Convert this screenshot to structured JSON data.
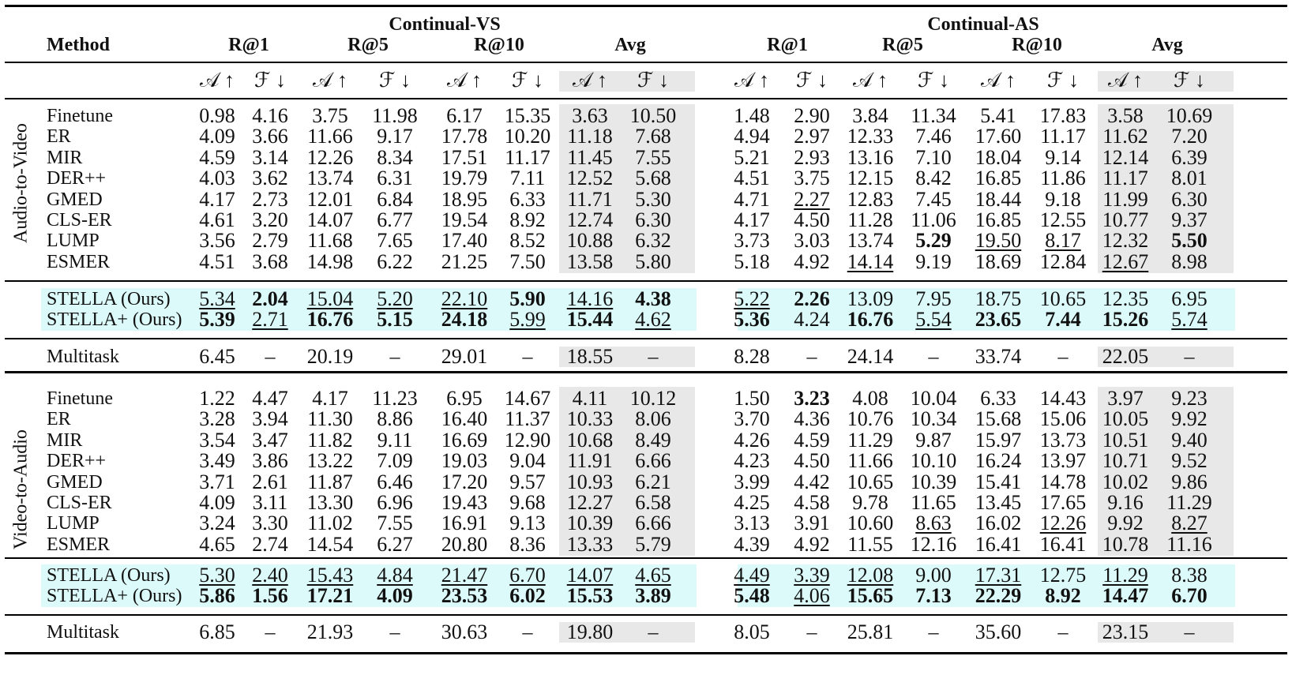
{
  "header": {
    "method_label": "Method",
    "groups": [
      "Continual-VS",
      "Continual-AS"
    ],
    "metrics": [
      "R@1",
      "R@5",
      "R@10",
      "Avg"
    ],
    "sub_a": "𝒜 ↑",
    "sub_f": "ℱ ↓"
  },
  "colors": {
    "avg_shade": "#e8e8e8",
    "ours_shade": "#dcfafa"
  },
  "sections": [
    {
      "name": "Audio-to-Video",
      "rows": [
        {
          "method": "Finetune",
          "values": [
            "0.98",
            "4.16",
            "3.75",
            "11.98",
            "6.17",
            "15.35",
            "3.63",
            "10.50",
            "1.48",
            "2.90",
            "3.84",
            "11.34",
            "5.41",
            "17.83",
            "3.58",
            "10.69"
          ],
          "bold": [],
          "underline": []
        },
        {
          "method": "ER",
          "values": [
            "4.09",
            "3.66",
            "11.66",
            "9.17",
            "17.78",
            "10.20",
            "11.18",
            "7.68",
            "4.94",
            "2.97",
            "12.33",
            "7.46",
            "17.60",
            "11.17",
            "11.62",
            "7.20"
          ],
          "bold": [],
          "underline": []
        },
        {
          "method": "MIR",
          "values": [
            "4.59",
            "3.14",
            "12.26",
            "8.34",
            "17.51",
            "11.17",
            "11.45",
            "7.55",
            "5.21",
            "2.93",
            "13.16",
            "7.10",
            "18.04",
            "9.14",
            "12.14",
            "6.39"
          ],
          "bold": [],
          "underline": []
        },
        {
          "method": "DER++",
          "values": [
            "4.03",
            "3.62",
            "13.74",
            "6.31",
            "19.79",
            "7.11",
            "12.52",
            "5.68",
            "4.51",
            "3.75",
            "12.15",
            "8.42",
            "16.85",
            "11.86",
            "11.17",
            "8.01"
          ],
          "bold": [],
          "underline": []
        },
        {
          "method": "GMED",
          "values": [
            "4.17",
            "2.73",
            "12.01",
            "6.84",
            "18.95",
            "6.33",
            "11.71",
            "5.30",
            "4.71",
            "2.27",
            "12.83",
            "7.45",
            "18.44",
            "9.18",
            "11.99",
            "6.30"
          ],
          "bold": [],
          "underline": [
            9
          ]
        },
        {
          "method": "CLS-ER",
          "values": [
            "4.61",
            "3.20",
            "14.07",
            "6.77",
            "19.54",
            "8.92",
            "12.74",
            "6.30",
            "4.17",
            "4.50",
            "11.28",
            "11.06",
            "16.85",
            "12.55",
            "10.77",
            "9.37"
          ],
          "bold": [],
          "underline": []
        },
        {
          "method": "LUMP",
          "values": [
            "3.56",
            "2.79",
            "11.68",
            "7.65",
            "17.40",
            "8.52",
            "10.88",
            "6.32",
            "3.73",
            "3.03",
            "13.74",
            "5.29",
            "19.50",
            "8.17",
            "12.32",
            "5.50"
          ],
          "bold": [
            11,
            15
          ],
          "underline": [
            12,
            13
          ]
        },
        {
          "method": "ESMER",
          "values": [
            "4.51",
            "3.68",
            "14.98",
            "6.22",
            "21.25",
            "7.50",
            "13.58",
            "5.80",
            "5.18",
            "4.92",
            "14.14",
            "9.19",
            "18.69",
            "12.84",
            "12.67",
            "8.98"
          ],
          "bold": [],
          "underline": [
            10,
            14
          ]
        }
      ],
      "ours": [
        {
          "method": "STELLA (Ours)",
          "values": [
            "5.34",
            "2.04",
            "15.04",
            "5.20",
            "22.10",
            "5.90",
            "14.16",
            "4.38",
            "5.22",
            "2.26",
            "13.09",
            "7.95",
            "18.75",
            "10.65",
            "12.35",
            "6.95"
          ],
          "bold": [
            1,
            5,
            7,
            9
          ],
          "underline": [
            0,
            2,
            3,
            4,
            6,
            8
          ]
        },
        {
          "method": "STELLA+ (Ours)",
          "values": [
            "5.39",
            "2.71",
            "16.76",
            "5.15",
            "24.18",
            "5.99",
            "15.44",
            "4.62",
            "5.36",
            "4.24",
            "16.76",
            "5.54",
            "23.65",
            "7.44",
            "15.26",
            "5.74"
          ],
          "bold": [
            0,
            2,
            3,
            4,
            6,
            8,
            10,
            12,
            13,
            14
          ],
          "underline": [
            1,
            5,
            7,
            11,
            15
          ]
        }
      ],
      "multitask": {
        "method": "Multitask",
        "values": [
          "6.45",
          "–",
          "20.19",
          "–",
          "29.01",
          "–",
          "18.55",
          "–",
          "8.28",
          "–",
          "24.14",
          "–",
          "33.74",
          "–",
          "22.05",
          "–"
        ]
      }
    },
    {
      "name": "Video-to-Audio",
      "rows": [
        {
          "method": "Finetune",
          "values": [
            "1.22",
            "4.47",
            "4.17",
            "11.23",
            "6.95",
            "14.67",
            "4.11",
            "10.12",
            "1.50",
            "3.23",
            "4.08",
            "10.04",
            "6.33",
            "14.43",
            "3.97",
            "9.23"
          ],
          "bold": [
            9
          ],
          "underline": []
        },
        {
          "method": "ER",
          "values": [
            "3.28",
            "3.94",
            "11.30",
            "8.86",
            "16.40",
            "11.37",
            "10.33",
            "8.06",
            "3.70",
            "4.36",
            "10.76",
            "10.34",
            "15.68",
            "15.06",
            "10.05",
            "9.92"
          ],
          "bold": [],
          "underline": []
        },
        {
          "method": "MIR",
          "values": [
            "3.54",
            "3.47",
            "11.82",
            "9.11",
            "16.69",
            "12.90",
            "10.68",
            "8.49",
            "4.26",
            "4.59",
            "11.29",
            "9.87",
            "15.97",
            "13.73",
            "10.51",
            "9.40"
          ],
          "bold": [],
          "underline": []
        },
        {
          "method": "DER++",
          "values": [
            "3.49",
            "3.86",
            "13.22",
            "7.09",
            "19.03",
            "9.04",
            "11.91",
            "6.66",
            "4.23",
            "4.50",
            "11.66",
            "10.10",
            "16.24",
            "13.97",
            "10.71",
            "9.52"
          ],
          "bold": [],
          "underline": []
        },
        {
          "method": "GMED",
          "values": [
            "3.71",
            "2.61",
            "11.87",
            "6.46",
            "17.20",
            "9.57",
            "10.93",
            "6.21",
            "3.99",
            "4.42",
            "10.65",
            "10.39",
            "15.41",
            "14.78",
            "10.02",
            "9.86"
          ],
          "bold": [],
          "underline": []
        },
        {
          "method": "CLS-ER",
          "values": [
            "4.09",
            "3.11",
            "13.30",
            "6.96",
            "19.43",
            "9.68",
            "12.27",
            "6.58",
            "4.25",
            "4.58",
            "9.78",
            "11.65",
            "13.45",
            "17.65",
            "9.16",
            "11.29"
          ],
          "bold": [],
          "underline": []
        },
        {
          "method": "LUMP",
          "values": [
            "3.24",
            "3.30",
            "11.02",
            "7.55",
            "16.91",
            "9.13",
            "10.39",
            "6.66",
            "3.13",
            "3.91",
            "10.60",
            "8.63",
            "16.02",
            "12.26",
            "9.92",
            "8.27"
          ],
          "bold": [],
          "underline": [
            11,
            13,
            15
          ]
        },
        {
          "method": "ESMER",
          "values": [
            "4.65",
            "2.74",
            "14.54",
            "6.27",
            "20.80",
            "8.36",
            "13.33",
            "5.79",
            "4.39",
            "4.92",
            "11.55",
            "12.16",
            "16.41",
            "16.41",
            "10.78",
            "11.16"
          ],
          "bold": [],
          "underline": []
        }
      ],
      "ours": [
        {
          "method": "STELLA (Ours)",
          "values": [
            "5.30",
            "2.40",
            "15.43",
            "4.84",
            "21.47",
            "6.70",
            "14.07",
            "4.65",
            "4.49",
            "3.39",
            "12.08",
            "9.00",
            "17.31",
            "12.75",
            "11.29",
            "8.38"
          ],
          "bold": [],
          "underline": [
            0,
            1,
            2,
            3,
            4,
            5,
            6,
            7,
            8,
            9,
            10,
            12,
            14
          ]
        },
        {
          "method": "STELLA+ (Ours)",
          "values": [
            "5.86",
            "1.56",
            "17.21",
            "4.09",
            "23.53",
            "6.02",
            "15.53",
            "3.89",
            "5.48",
            "4.06",
            "15.65",
            "7.13",
            "22.29",
            "8.92",
            "14.47",
            "6.70"
          ],
          "bold": [
            0,
            1,
            2,
            3,
            4,
            5,
            6,
            7,
            8,
            10,
            11,
            12,
            13,
            14,
            15
          ],
          "underline": [
            9
          ]
        }
      ],
      "multitask": {
        "method": "Multitask",
        "values": [
          "6.85",
          "–",
          "21.93",
          "–",
          "30.63",
          "–",
          "19.80",
          "–",
          "8.05",
          "–",
          "25.81",
          "–",
          "35.60",
          "–",
          "23.15",
          "–"
        ]
      }
    }
  ]
}
